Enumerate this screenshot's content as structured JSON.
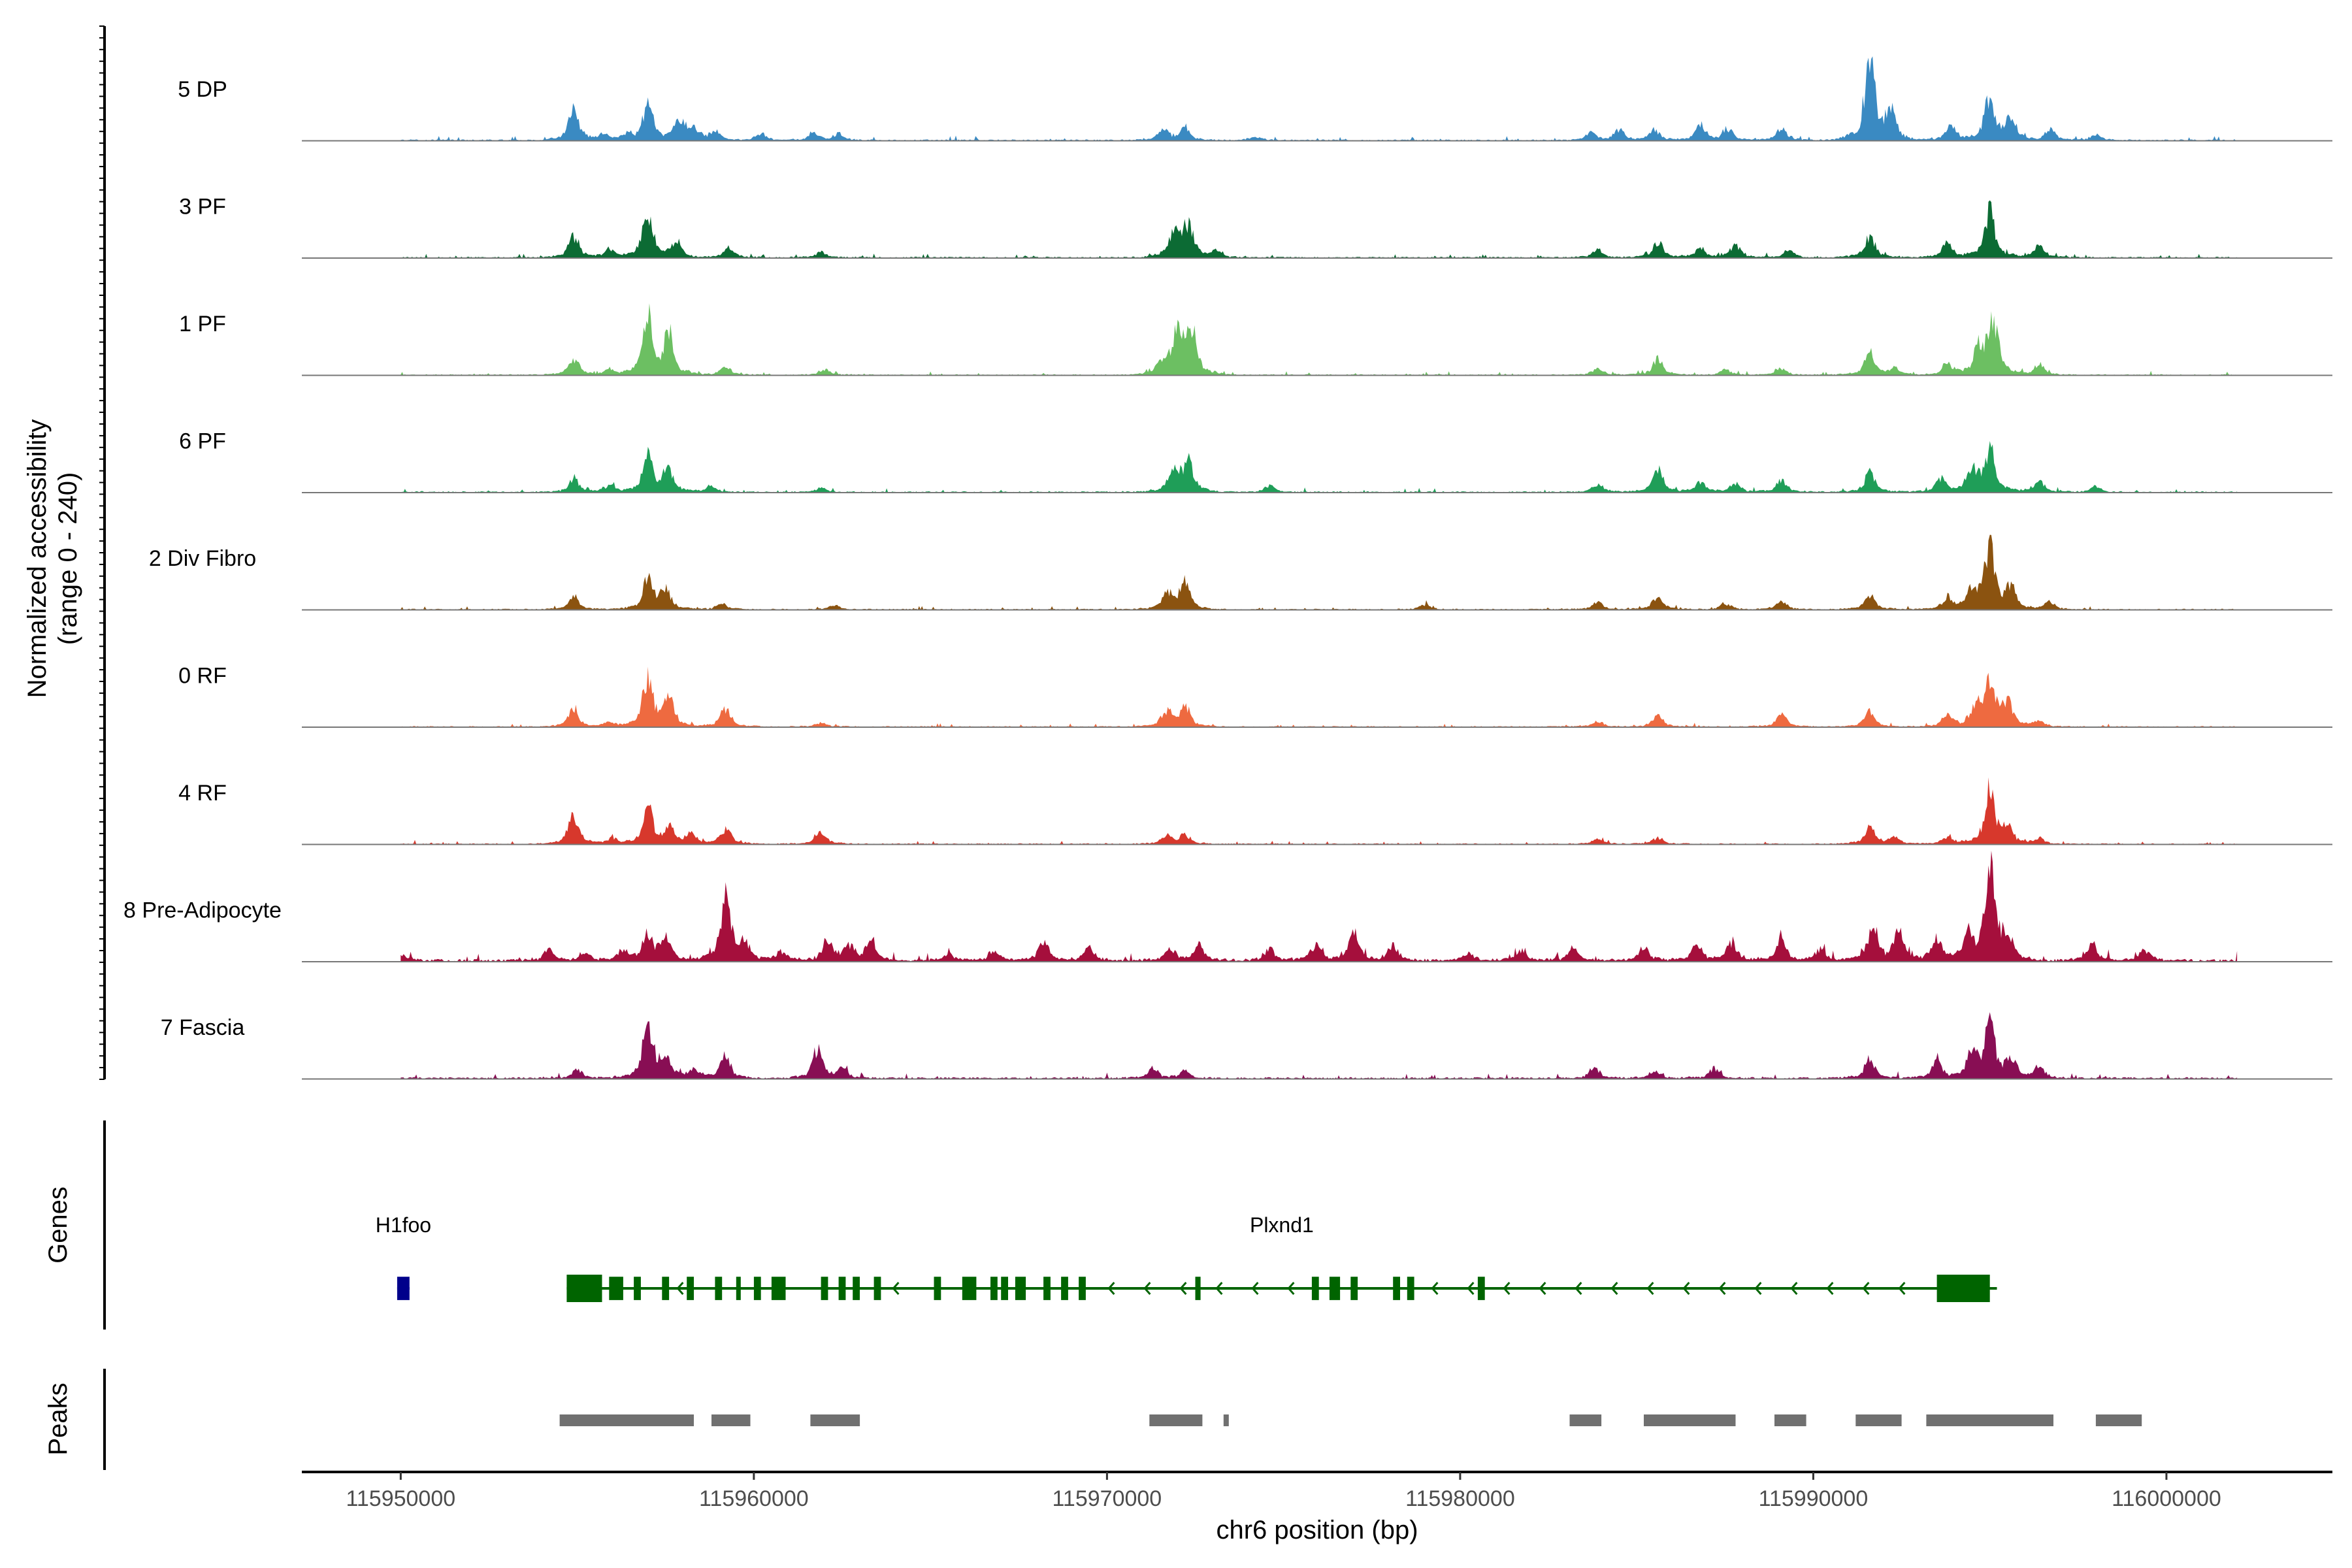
{
  "chart_data": {
    "type": "area",
    "title": "",
    "ylabel_line1": "Normalized accessibility",
    "ylabel_line2": "(range 0 - 240)",
    "y_range": [
      0,
      240
    ],
    "xlabel": "chr6 position (bp)",
    "xlim": [
      115947200,
      116004700
    ],
    "x_ticks": [
      115950000,
      115960000,
      115970000,
      115980000,
      115990000,
      116000000
    ],
    "x_tick_labels": [
      "115950000",
      "115960000",
      "115970000",
      "115980000",
      "115990000",
      "116000000"
    ],
    "track_extent": [
      115950000,
      116002000
    ],
    "tracks": [
      {
        "name": "5 DP",
        "color": "#3a8ac2",
        "peaks": [
          [
            115954900,
            55
          ],
          [
            115955800,
            12
          ],
          [
            115956400,
            10
          ],
          [
            115957000,
            65
          ],
          [
            115957900,
            40
          ],
          [
            115958300,
            22
          ],
          [
            115958900,
            15
          ],
          [
            115960200,
            12
          ],
          [
            115961700,
            14
          ],
          [
            115962400,
            12
          ],
          [
            115971600,
            18
          ],
          [
            115972200,
            24
          ],
          [
            115974200,
            8
          ],
          [
            115983700,
            14
          ],
          [
            115984500,
            18
          ],
          [
            115985500,
            20
          ],
          [
            115986800,
            28
          ],
          [
            115987600,
            18
          ],
          [
            115989100,
            22
          ],
          [
            115991600,
            150
          ],
          [
            115992200,
            50
          ],
          [
            115993900,
            26
          ],
          [
            115995000,
            80
          ],
          [
            115995600,
            40
          ],
          [
            115996700,
            20
          ],
          [
            115998000,
            10
          ]
        ],
        "noise": 3.0
      },
      {
        "name": "3 PF",
        "color": "#0c6b34",
        "peaks": [
          [
            115954900,
            40
          ],
          [
            115955900,
            15
          ],
          [
            115957000,
            90
          ],
          [
            115957800,
            30
          ],
          [
            115959300,
            20
          ],
          [
            115961900,
            10
          ],
          [
            115971900,
            50
          ],
          [
            115972300,
            62
          ],
          [
            115973100,
            12
          ],
          [
            115983900,
            15
          ],
          [
            115985600,
            28
          ],
          [
            115986800,
            18
          ],
          [
            115987800,
            22
          ],
          [
            115989300,
            14
          ],
          [
            115991600,
            40
          ],
          [
            115993800,
            28
          ],
          [
            115995000,
            85
          ],
          [
            115996400,
            25
          ]
        ],
        "noise": 3.0
      },
      {
        "name": "1 PF",
        "color": "#6cbf62",
        "peaks": [
          [
            115954900,
            30
          ],
          [
            115955900,
            10
          ],
          [
            115957000,
            110
          ],
          [
            115957600,
            75
          ],
          [
            115959200,
            15
          ],
          [
            115962000,
            10
          ],
          [
            115971600,
            25
          ],
          [
            115972000,
            80
          ],
          [
            115972400,
            75
          ],
          [
            115983900,
            12
          ],
          [
            115985600,
            30
          ],
          [
            115987500,
            10
          ],
          [
            115989100,
            12
          ],
          [
            115991600,
            40
          ],
          [
            115992300,
            14
          ],
          [
            115993800,
            22
          ],
          [
            115994700,
            50
          ],
          [
            115995100,
            100
          ],
          [
            115996400,
            20
          ]
        ],
        "noise": 2.5
      },
      {
        "name": "6 PF",
        "color": "#1f9e58",
        "peaks": [
          [
            115954900,
            25
          ],
          [
            115955900,
            12
          ],
          [
            115957000,
            70
          ],
          [
            115957600,
            40
          ],
          [
            115958800,
            10
          ],
          [
            115961900,
            8
          ],
          [
            115971900,
            50
          ],
          [
            115972300,
            55
          ],
          [
            115974600,
            12
          ],
          [
            115983900,
            16
          ],
          [
            115985600,
            42
          ],
          [
            115986800,
            18
          ],
          [
            115987800,
            16
          ],
          [
            115989100,
            22
          ],
          [
            115991600,
            35
          ],
          [
            115993600,
            25
          ],
          [
            115994500,
            45
          ],
          [
            115995000,
            80
          ],
          [
            115996400,
            20
          ],
          [
            115998000,
            10
          ]
        ],
        "noise": 3.0
      },
      {
        "name": "2 Div Fibro",
        "color": "#8b5310",
        "peaks": [
          [
            115954900,
            25
          ],
          [
            115957000,
            55
          ],
          [
            115957500,
            35
          ],
          [
            115959100,
            12
          ],
          [
            115962300,
            8
          ],
          [
            115971700,
            30
          ],
          [
            115972200,
            50
          ],
          [
            115979000,
            10
          ],
          [
            115983900,
            14
          ],
          [
            115985600,
            25
          ],
          [
            115987500,
            12
          ],
          [
            115989100,
            16
          ],
          [
            115991600,
            30
          ],
          [
            115993800,
            22
          ],
          [
            115994500,
            35
          ],
          [
            115995000,
            120
          ],
          [
            115995600,
            40
          ],
          [
            115996700,
            15
          ]
        ],
        "noise": 2.5
      },
      {
        "name": "0 RF",
        "color": "#ee6a40",
        "peaks": [
          [
            115954900,
            35
          ],
          [
            115955900,
            8
          ],
          [
            115957000,
            90
          ],
          [
            115957600,
            55
          ],
          [
            115959200,
            35
          ],
          [
            115961900,
            8
          ],
          [
            115971700,
            30
          ],
          [
            115972200,
            38
          ],
          [
            115983900,
            10
          ],
          [
            115985600,
            20
          ],
          [
            115989100,
            25
          ],
          [
            115991600,
            30
          ],
          [
            115993800,
            22
          ],
          [
            115994600,
            35
          ],
          [
            115995000,
            85
          ],
          [
            115995500,
            45
          ],
          [
            115996400,
            12
          ]
        ],
        "noise": 2.5
      },
      {
        "name": "4 RF",
        "color": "#d7382c",
        "peaks": [
          [
            115954900,
            55
          ],
          [
            115956000,
            10
          ],
          [
            115957000,
            65
          ],
          [
            115957600,
            30
          ],
          [
            115958200,
            20
          ],
          [
            115959200,
            28
          ],
          [
            115961900,
            25
          ],
          [
            115971700,
            15
          ],
          [
            115972200,
            18
          ],
          [
            115983900,
            10
          ],
          [
            115985600,
            12
          ],
          [
            115991600,
            30
          ],
          [
            115992300,
            12
          ],
          [
            115993800,
            14
          ],
          [
            115995000,
            100
          ],
          [
            115995500,
            30
          ],
          [
            115996400,
            10
          ]
        ],
        "noise": 2.5
      },
      {
        "name": "8 Pre-Adipocyte",
        "color": "#a50f3c",
        "peaks": [
          [
            115950000,
            10
          ],
          [
            115954200,
            20
          ],
          [
            115955200,
            15
          ],
          [
            115956300,
            18
          ],
          [
            115957000,
            50
          ],
          [
            115957500,
            40
          ],
          [
            115959200,
            110
          ],
          [
            115959700,
            40
          ],
          [
            115960800,
            18
          ],
          [
            115962100,
            38
          ],
          [
            115962700,
            28
          ],
          [
            115963300,
            35
          ],
          [
            115965500,
            12
          ],
          [
            115966800,
            18
          ],
          [
            115968200,
            35
          ],
          [
            115969500,
            25
          ],
          [
            115971800,
            22
          ],
          [
            115972600,
            28
          ],
          [
            115974600,
            22
          ],
          [
            115975900,
            30
          ],
          [
            115977000,
            50
          ],
          [
            115978100,
            28
          ],
          [
            115980200,
            15
          ],
          [
            115981700,
            20
          ],
          [
            115983200,
            28
          ],
          [
            115985200,
            25
          ],
          [
            115986700,
            30
          ],
          [
            115987700,
            35
          ],
          [
            115989100,
            40
          ],
          [
            115990200,
            20
          ],
          [
            115991700,
            65
          ],
          [
            115992400,
            55
          ],
          [
            115993500,
            40
          ],
          [
            115994400,
            45
          ],
          [
            115995000,
            190
          ],
          [
            115995500,
            50
          ],
          [
            115997900,
            30
          ],
          [
            115999400,
            22
          ]
        ],
        "noise": 6.0
      },
      {
        "name": "7 Fascia",
        "color": "#880e54",
        "peaks": [
          [
            115955000,
            15
          ],
          [
            115957000,
            105
          ],
          [
            115957500,
            40
          ],
          [
            115958300,
            15
          ],
          [
            115959200,
            40
          ],
          [
            115961800,
            55
          ],
          [
            115962500,
            15
          ],
          [
            115971300,
            18
          ],
          [
            115972200,
            15
          ],
          [
            115983800,
            20
          ],
          [
            115985500,
            15
          ],
          [
            115987200,
            18
          ],
          [
            115991600,
            35
          ],
          [
            115993500,
            30
          ],
          [
            115994500,
            45
          ],
          [
            115995000,
            95
          ],
          [
            115995600,
            35
          ],
          [
            115996400,
            20
          ]
        ],
        "noise": 4.0
      }
    ],
    "genes_label": "Genes",
    "genes": [
      {
        "name": "H1foo",
        "start": 115949900,
        "end": 115950250,
        "color": "#00008b",
        "strand": "+",
        "exons": [
          [
            115949900,
            115950250
          ]
        ]
      },
      {
        "name": "Plxnd1",
        "start": 115954700,
        "end": 115995200,
        "color": "#006400",
        "strand": "-",
        "exons": [
          [
            115954700,
            115955700
          ],
          [
            115955900,
            115956300
          ],
          [
            115956600,
            115956800
          ],
          [
            115957400,
            115957600
          ],
          [
            115958100,
            115958300
          ],
          [
            115958900,
            115959100
          ],
          [
            115959500,
            115959600
          ],
          [
            115960000,
            115960200
          ],
          [
            115960500,
            115960900
          ],
          [
            115961900,
            115962100
          ],
          [
            115962400,
            115962600
          ],
          [
            115962800,
            115963000
          ],
          [
            115963400,
            115963600
          ],
          [
            115965100,
            115965300
          ],
          [
            115965900,
            115966300
          ],
          [
            115966700,
            115966900
          ],
          [
            115967000,
            115967200
          ],
          [
            115967400,
            115967700
          ],
          [
            115968200,
            115968400
          ],
          [
            115968700,
            115968900
          ],
          [
            115969200,
            115969400
          ],
          [
            115972500,
            115972650
          ],
          [
            115975800,
            115976000
          ],
          [
            115976300,
            115976600
          ],
          [
            115976900,
            115977100
          ],
          [
            115978100,
            115978300
          ],
          [
            115978500,
            115978700
          ],
          [
            115980500,
            115980700
          ],
          [
            115993500,
            115995000
          ]
        ]
      }
    ],
    "peaks_label": "Peaks",
    "peak_regions": [
      [
        115954500,
        115958300
      ],
      [
        115958800,
        115959900
      ],
      [
        115961600,
        115963000
      ],
      [
        115971200,
        115972700
      ],
      [
        115973300,
        115973400
      ],
      [
        115983100,
        115984000
      ],
      [
        115985200,
        115987800
      ],
      [
        115988900,
        115989800
      ],
      [
        115991200,
        115992500
      ],
      [
        115993200,
        115996800
      ],
      [
        115998000,
        115999300
      ]
    ]
  }
}
